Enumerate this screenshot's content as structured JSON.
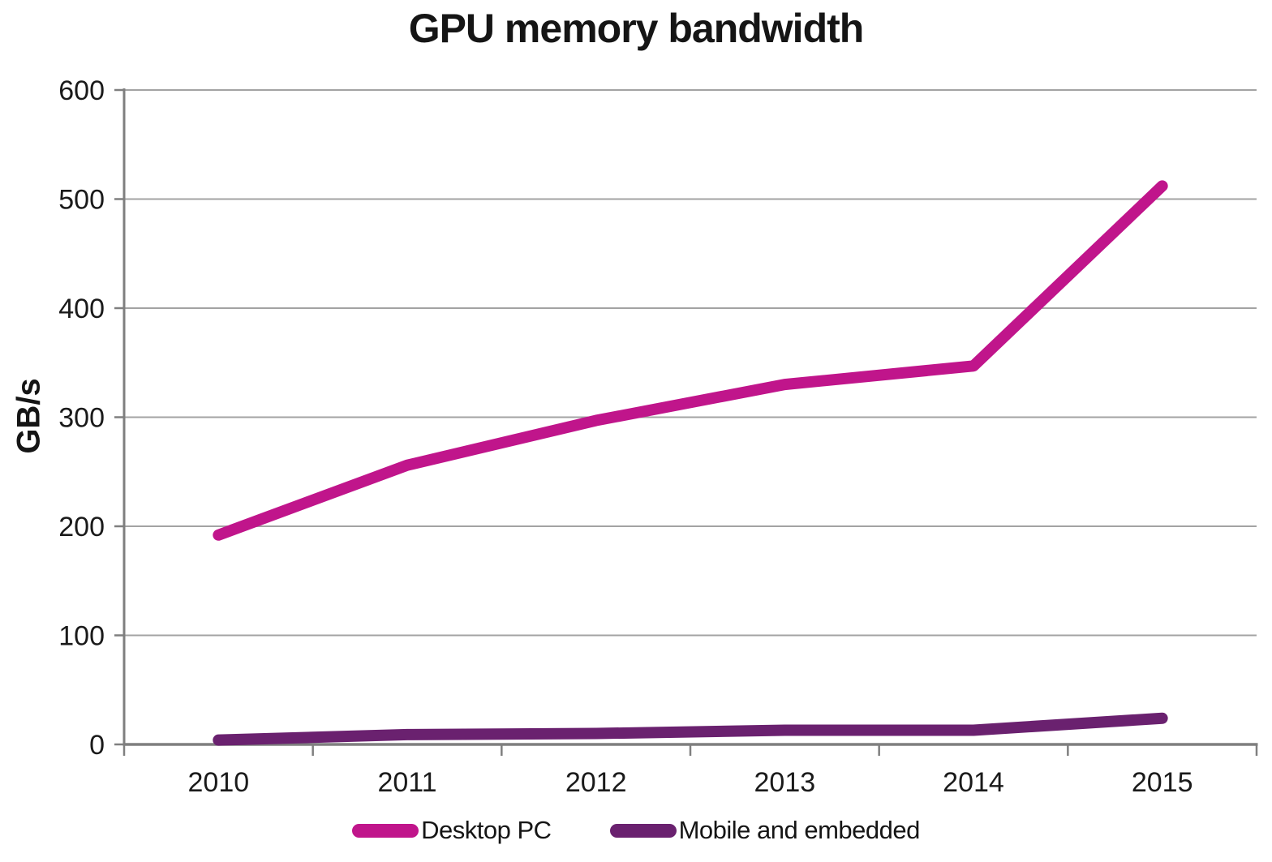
{
  "title": "GPU memory bandwidth",
  "chart_data": {
    "type": "line",
    "title": "GPU memory bandwidth",
    "categories": [
      "2010",
      "2011",
      "2012",
      "2013",
      "2014",
      "2015"
    ],
    "series": [
      {
        "name": "Desktop PC",
        "color": "#C0158B",
        "values": [
          192,
          256,
          297,
          330,
          347,
          512
        ]
      },
      {
        "name": "Mobile and embedded",
        "color": "#6A216F",
        "values": [
          4,
          9,
          10,
          13,
          13,
          24
        ]
      }
    ],
    "xlabel": "",
    "ylabel": "GB/s",
    "ylim": [
      0,
      600
    ],
    "yticks": [
      0,
      100,
      200,
      300,
      400,
      500,
      600
    ],
    "grid": "horizontal",
    "legend_position": "bottom",
    "gridline_color": "#A3A3A3",
    "axis_color": "#7F7F7F",
    "label_color": "#1A1A1A"
  }
}
